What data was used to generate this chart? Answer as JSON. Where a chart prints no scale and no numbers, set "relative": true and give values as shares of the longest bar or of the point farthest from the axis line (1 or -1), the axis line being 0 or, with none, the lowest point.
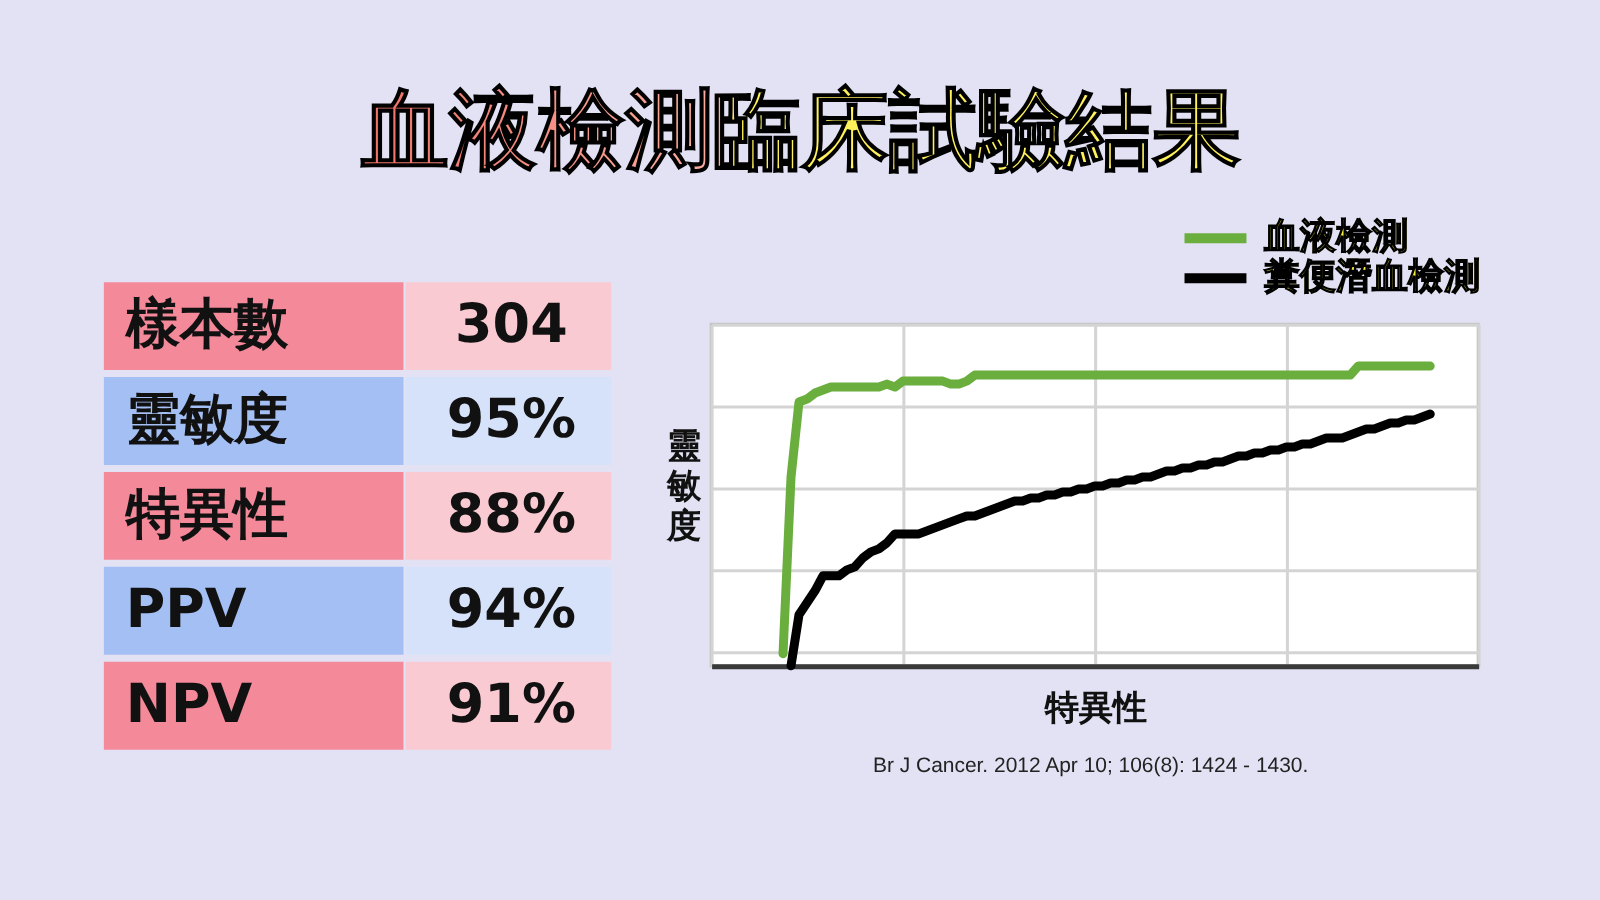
{
  "chart_data": [
    {
      "type": "other",
      "title": "血液檢測臨床試驗結果",
      "categories": [
        "樣本數",
        "靈敏度",
        "特異性",
        "PPV",
        "NPV"
      ],
      "value_labels": [
        "304",
        "95%",
        "88%",
        "94%",
        "91%"
      ],
      "colors": [
        "#f4899a",
        "#a4bff3",
        "#f4899a",
        "#a4bff3",
        "#f4899a"
      ]
    },
    {
      "type": "line",
      "relative": true,
      "xlabel": "特異性",
      "ylabel": "靈敏度",
      "legend": "top right",
      "grid": true,
      "annotations": [
        "Br J Cancer. 2012 Apr 10; 106(8): 1424 - 1430."
      ],
      "categories": [
        null,
        null,
        null,
        null,
        null,
        null,
        null,
        null,
        null,
        null,
        null,
        null,
        null,
        null,
        null,
        null,
        null,
        null,
        null,
        null,
        null,
        null,
        null,
        null,
        null,
        null,
        null,
        null,
        null,
        null,
        null,
        null,
        null,
        null,
        null,
        null,
        null,
        null,
        null,
        null,
        null,
        null,
        null,
        null,
        null,
        null,
        null,
        null,
        null,
        null,
        null,
        null,
        null,
        null,
        null,
        null,
        null,
        null,
        null,
        null,
        null,
        null,
        null,
        null,
        null,
        null,
        null,
        null,
        null,
        null,
        null,
        null,
        null,
        null,
        null,
        null,
        null,
        null,
        null,
        null,
        null,
        null,
        null,
        null,
        null,
        null,
        null,
        null,
        null,
        null,
        null,
        null,
        null,
        null,
        null,
        null,
        null
      ],
      "series": [
        {
          "name": "血液檢測",
          "color": "#6aae3e",
          "values": [
            null,
            null,
            null,
            null,
            null,
            null,
            null,
            null,
            null,
            0.04,
            0.63,
            0.88,
            0.89,
            0.91,
            0.92,
            0.93,
            0.93,
            0.93,
            0.93,
            0.93,
            0.93,
            0.93,
            0.94,
            0.93,
            0.95,
            0.95,
            0.95,
            0.95,
            0.95,
            0.95,
            0.94,
            0.94,
            0.95,
            0.97,
            0.97,
            0.97,
            0.97,
            0.97,
            0.97,
            0.97,
            0.97,
            0.97,
            0.97,
            0.97,
            0.97,
            0.97,
            0.97,
            0.97,
            0.97,
            0.97,
            0.97,
            0.97,
            0.97,
            0.97,
            0.97,
            0.97,
            0.97,
            0.97,
            0.97,
            0.97,
            0.97,
            0.97,
            0.97,
            0.97,
            0.97,
            0.97,
            0.97,
            0.97,
            0.97,
            0.97,
            0.97,
            0.97,
            0.97,
            0.97,
            0.97,
            0.97,
            0.97,
            0.97,
            0.97,
            0.97,
            0.97,
            1,
            1,
            1,
            1,
            1,
            1,
            1,
            1,
            1,
            1,
            null,
            null,
            null,
            null,
            null,
            null
          ]
        },
        {
          "name": "糞便潛血檢測",
          "color": "#000000",
          "values": [
            null,
            null,
            null,
            null,
            null,
            null,
            null,
            null,
            null,
            null,
            0,
            0.17,
            0.21,
            0.25,
            0.3,
            0.3,
            0.3,
            0.32,
            0.33,
            0.36,
            0.38,
            0.39,
            0.41,
            0.44,
            0.44,
            0.44,
            0.44,
            0.45,
            0.46,
            0.47,
            0.48,
            0.49,
            0.5,
            0.5,
            0.51,
            0.52,
            0.53,
            0.54,
            0.55,
            0.55,
            0.56,
            0.56,
            0.57,
            0.57,
            0.58,
            0.58,
            0.59,
            0.59,
            0.6,
            0.6,
            0.61,
            0.61,
            0.62,
            0.62,
            0.63,
            0.63,
            0.64,
            0.65,
            0.65,
            0.66,
            0.66,
            0.67,
            0.67,
            0.68,
            0.68,
            0.69,
            0.7,
            0.7,
            0.71,
            0.71,
            0.72,
            0.72,
            0.73,
            0.73,
            0.74,
            0.74,
            0.75,
            0.76,
            0.76,
            0.76,
            0.77,
            0.78,
            0.79,
            0.79,
            0.8,
            0.81,
            0.81,
            0.82,
            0.82,
            0.83,
            0.84,
            null,
            null,
            null,
            null,
            null,
            null
          ]
        }
      ]
    }
  ]
}
